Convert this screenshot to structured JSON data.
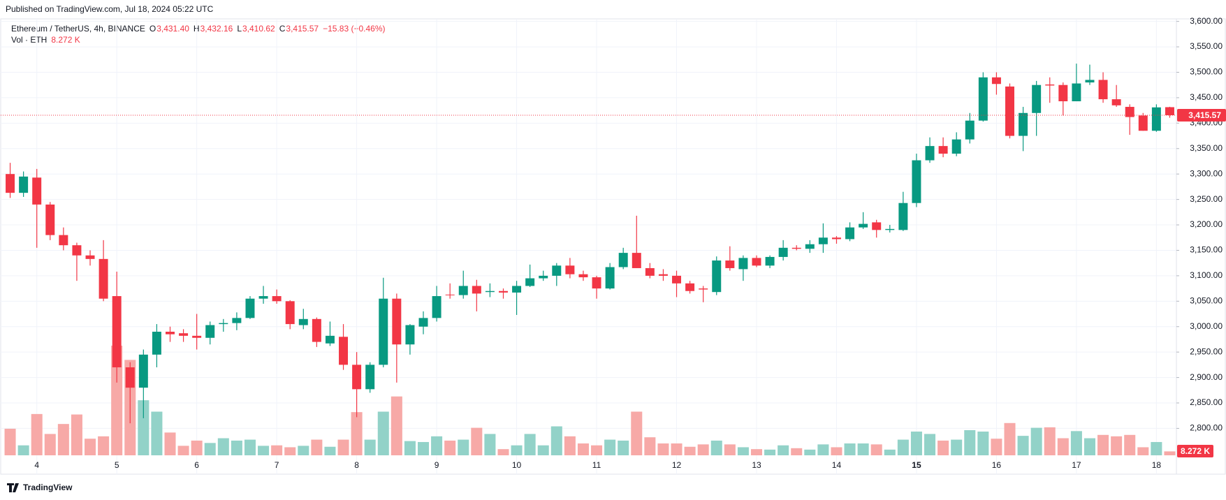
{
  "chart_data": {
    "type": "candlestick",
    "published": "Published on TradingView.com, Jul 18, 2024 05:22 UTC",
    "footer": "TradingView",
    "legend": {
      "symbol": "Ethereum / TetherUS, 4h, BINANCE",
      "o": "O",
      "open": "3,431.40",
      "h": "H",
      "high": "3,432.16",
      "l": "L",
      "low": "3,410.62",
      "c": "C",
      "close": "3,415.57",
      "change": "−15.83 (−0.46%)",
      "vol_name": "Vol · ETH",
      "vol": "8.272 K"
    },
    "last_price_label": "3,415.57",
    "last_volume_label": "8.272 K",
    "up_color": "#089981",
    "down_color": "#f23645",
    "up_volume_color": "#92d2c8",
    "down_volume_color": "#f7a9a7",
    "grid": true,
    "categories": [
      null,
      null,
      "4",
      null,
      null,
      null,
      null,
      null,
      "5",
      null,
      null,
      null,
      null,
      null,
      "6",
      null,
      null,
      null,
      null,
      null,
      "7",
      null,
      null,
      null,
      null,
      null,
      "8",
      null,
      null,
      null,
      null,
      null,
      "9",
      null,
      null,
      null,
      null,
      null,
      "10",
      null,
      null,
      null,
      null,
      null,
      "11",
      null,
      null,
      null,
      null,
      null,
      "12",
      null,
      null,
      null,
      null,
      null,
      "13",
      null,
      null,
      null,
      null,
      null,
      "14",
      null,
      null,
      null,
      null,
      null,
      "15",
      null,
      null,
      null,
      null,
      null,
      "16",
      null,
      null,
      null,
      null,
      null,
      "17",
      null,
      null,
      null,
      null,
      null,
      "18",
      null
    ],
    "open": [
      3300,
      3263,
      3293,
      3240,
      3180,
      3160,
      3140,
      3133,
      3060,
      2920,
      2880,
      2945,
      2990,
      2987,
      2982,
      2978,
      3005,
      3007,
      3017,
      3055,
      3060,
      3050,
      3003,
      3015,
      2967,
      2980,
      2925,
      2877,
      2925,
      3055,
      2965,
      3000,
      3017,
      3063,
      3062,
      3080,
      3068,
      3070,
      3067,
      3080,
      3095,
      3100,
      3120,
      3103,
      3097,
      3075,
      3117,
      3145,
      3115,
      3103,
      3100,
      3085,
      3075,
      3068,
      3130,
      3113,
      3135,
      3120,
      3137,
      3155,
      3153,
      3162,
      3175,
      3172,
      3195,
      3205,
      3190,
      3190,
      3243,
      3327,
      3355,
      3340,
      3368,
      3405,
      3490,
      3472,
      3375,
      3420,
      3476,
      3475,
      3443,
      3480,
      3485,
      3447,
      3432,
      3415,
      3385,
      3431.4
    ],
    "high": [
      3322,
      3305,
      3310,
      3245,
      3195,
      3165,
      3150,
      3170,
      3108,
      2930,
      2955,
      3005,
      3000,
      2995,
      3025,
      3010,
      3015,
      3028,
      3060,
      3080,
      3073,
      3052,
      3035,
      3018,
      3010,
      3005,
      2950,
      2930,
      3096,
      3065,
      3005,
      3030,
      3080,
      3085,
      3110,
      3092,
      3085,
      3075,
      3090,
      3122,
      3110,
      3125,
      3135,
      3110,
      3100,
      3125,
      3155,
      3218,
      3125,
      3113,
      3110,
      3090,
      3080,
      3138,
      3158,
      3140,
      3140,
      3140,
      3170,
      3160,
      3170,
      3203,
      3178,
      3205,
      3225,
      3210,
      3200,
      3265,
      3340,
      3372,
      3372,
      3382,
      3420,
      3500,
      3500,
      3478,
      3432,
      3483,
      3490,
      3480,
      3517,
      3515,
      3500,
      3475,
      3437,
      3420,
      3437,
      3432.16
    ],
    "low": [
      3253,
      3255,
      3155,
      3170,
      3150,
      3090,
      3120,
      3050,
      2890,
      2810,
      2820,
      2920,
      2970,
      2970,
      2955,
      2965,
      2990,
      2993,
      3015,
      3045,
      3045,
      2995,
      2995,
      2960,
      2962,
      2915,
      2822,
      2870,
      2920,
      2890,
      2945,
      2985,
      3010,
      3055,
      3055,
      3030,
      3058,
      3055,
      3023,
      3078,
      3090,
      3080,
      3095,
      3090,
      3055,
      3073,
      3113,
      3115,
      3095,
      3090,
      3058,
      3065,
      3048,
      3062,
      3110,
      3090,
      3117,
      3115,
      3130,
      3150,
      3145,
      3145,
      3163,
      3168,
      3192,
      3175,
      3185,
      3188,
      3235,
      3322,
      3333,
      3335,
      3360,
      3403,
      3456,
      3370,
      3345,
      3375,
      3440,
      3415,
      3443,
      3475,
      3440,
      3432,
      3377,
      3385,
      3383,
      3410.62
    ],
    "close": [
      3263,
      3295,
      3240,
      3180,
      3160,
      3140,
      3133,
      3055,
      2920,
      2880,
      2945,
      2990,
      2985,
      2982,
      2978,
      3003,
      3007,
      3017,
      3055,
      3060,
      3050,
      3005,
      3015,
      2970,
      2982,
      2925,
      2877,
      2925,
      3055,
      2965,
      3003,
      3017,
      3060,
      3062,
      3080,
      3065,
      3070,
      3067,
      3080,
      3095,
      3100,
      3120,
      3103,
      3097,
      3075,
      3117,
      3145,
      3115,
      3100,
      3100,
      3085,
      3070,
      3073,
      3130,
      3115,
      3135,
      3120,
      3137,
      3155,
      3153,
      3162,
      3175,
      3172,
      3195,
      3202,
      3190,
      3192,
      3243,
      3327,
      3355,
      3340,
      3368,
      3405,
      3490,
      3477,
      3375,
      3420,
      3475,
      3474,
      3443,
      3478,
      3485,
      3447,
      3435,
      3412,
      3385,
      3431,
      3415.57
    ],
    "volume": [
      56,
      21,
      87,
      45,
      66,
      86,
      35,
      40,
      231,
      201,
      116,
      92,
      48,
      20,
      31,
      26,
      36,
      31,
      33,
      20,
      21,
      17,
      20,
      33,
      18,
      33,
      91,
      33,
      92,
      124,
      30,
      28,
      40,
      31,
      33,
      58,
      45,
      13,
      21,
      45,
      21,
      61,
      40,
      25,
      21,
      33,
      31,
      92,
      38,
      25,
      25,
      18,
      23,
      31,
      23,
      17,
      13,
      12,
      21,
      15,
      12,
      23,
      17,
      25,
      25,
      23,
      12,
      33,
      50,
      45,
      31,
      33,
      53,
      50,
      35,
      68,
      41,
      58,
      59,
      36,
      51,
      36,
      43,
      40,
      43,
      17,
      28,
      8.272
    ],
    "ylim": [
      2710,
      3605
    ],
    "yticks": [
      {
        "value": 2800,
        "label": "2,800.00"
      },
      {
        "value": 2850,
        "label": "2,850.00"
      },
      {
        "value": 2900,
        "label": "2,900.00"
      },
      {
        "value": 2950,
        "label": "2,950.00"
      },
      {
        "value": 3000,
        "label": "3,000.00"
      },
      {
        "value": 3050,
        "label": "3,050.00"
      },
      {
        "value": 3100,
        "label": "3,100.00"
      },
      {
        "value": 3150,
        "label": "3,150.00"
      },
      {
        "value": 3200,
        "label": "3,200.00"
      },
      {
        "value": 3250,
        "label": "3,250.00"
      },
      {
        "value": 3300,
        "label": "3,300.00"
      },
      {
        "value": 3350,
        "label": "3,350.00"
      },
      {
        "value": 3400,
        "label": "3,400.00"
      },
      {
        "value": 3450,
        "label": "3,450.00"
      },
      {
        "value": 3500,
        "label": "3,500.00"
      },
      {
        "value": 3550,
        "label": "3,550.00"
      },
      {
        "value": 3600,
        "label": "3,600.00"
      }
    ]
  }
}
